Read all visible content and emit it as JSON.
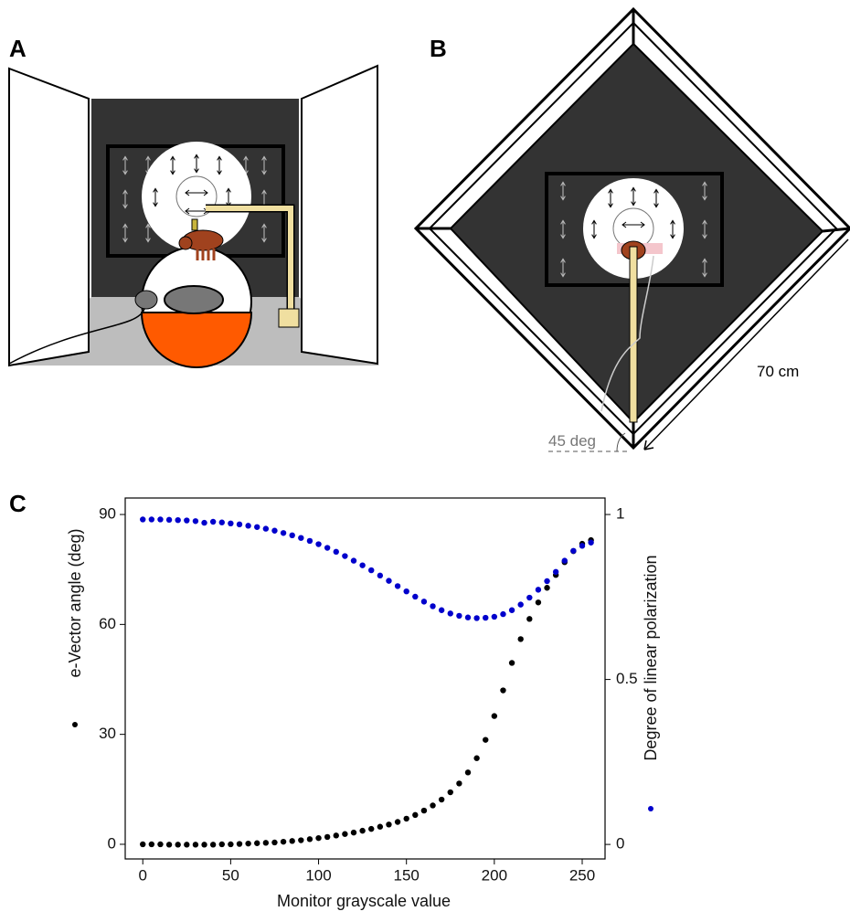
{
  "panels": {
    "a": "A",
    "b": "B",
    "c": "C"
  },
  "diagram": {
    "size_label": "70 cm",
    "angle_label": "45 deg"
  },
  "chart_data": {
    "type": "scatter",
    "x_label": "Monitor grayscale value",
    "y_label": "e-Vector angle (deg)",
    "y2_label": "Degree of linear polarization",
    "x": [
      0,
      5,
      10,
      15,
      20,
      25,
      30,
      35,
      40,
      45,
      50,
      55,
      60,
      65,
      70,
      75,
      80,
      85,
      90,
      95,
      100,
      105,
      110,
      115,
      120,
      125,
      130,
      135,
      140,
      145,
      150,
      155,
      160,
      165,
      170,
      175,
      180,
      185,
      190,
      195,
      200,
      205,
      210,
      215,
      220,
      225,
      230,
      235,
      240,
      245,
      250,
      255
    ],
    "series": [
      {
        "color": "#000000",
        "axis": "y",
        "values": [
          0,
          0,
          0,
          -0.1,
          -0.1,
          -0.1,
          -0.1,
          -0.1,
          -0.1,
          0,
          0,
          0.1,
          0.2,
          0.3,
          0.4,
          0.5,
          0.7,
          0.9,
          1.1,
          1.4,
          1.7,
          2.0,
          2.4,
          2.8,
          3.2,
          3.7,
          4.2,
          4.8,
          5.4,
          6.1,
          7.0,
          8.0,
          9.2,
          10.6,
          12.2,
          14.2,
          16.6,
          19.6,
          23.5,
          28.5,
          35,
          42,
          49.5,
          56,
          61.5,
          66,
          70,
          73.5,
          77,
          80,
          82,
          83
        ]
      },
      {
        "color": "#0000cc",
        "axis": "y2",
        "values": [
          0.985,
          0.985,
          0.985,
          0.984,
          0.983,
          0.982,
          0.98,
          0.975,
          0.978,
          0.976,
          0.973,
          0.97,
          0.966,
          0.962,
          0.957,
          0.951,
          0.944,
          0.937,
          0.929,
          0.92,
          0.91,
          0.899,
          0.887,
          0.874,
          0.86,
          0.846,
          0.831,
          0.815,
          0.799,
          0.783,
          0.767,
          0.751,
          0.736,
          0.722,
          0.71,
          0.7,
          0.693,
          0.688,
          0.686,
          0.687,
          0.69,
          0.698,
          0.71,
          0.727,
          0.748,
          0.772,
          0.798,
          0.826,
          0.86,
          0.89,
          0.905,
          0.915
        ]
      }
    ],
    "xlim": [
      -10,
      263
    ],
    "xticks": [
      0,
      50,
      100,
      150,
      200,
      250
    ],
    "ylim": [
      -4,
      94.5
    ],
    "yticks": [
      0,
      30,
      60,
      90
    ],
    "y2lim": [
      -0.044,
      1.05
    ],
    "y2ticks": [
      0,
      0.5,
      1
    ]
  }
}
